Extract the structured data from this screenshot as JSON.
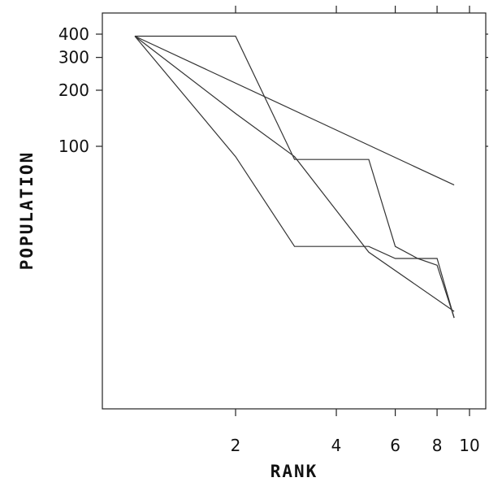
{
  "chart_data": {
    "type": "line",
    "title": "",
    "xlabel": "RANK",
    "ylabel": "POPULATION",
    "xscale": "log",
    "yscale": "log",
    "xlim": [
      1,
      10
    ],
    "ylim": [
      10,
      480
    ],
    "grid": false,
    "x_ticks": [
      {
        "value": 2,
        "label": "2"
      },
      {
        "value": 4,
        "label": "4"
      },
      {
        "value": 6,
        "label": "6"
      },
      {
        "value": 8,
        "label": "8"
      },
      {
        "value": 10,
        "label": "10"
      }
    ],
    "y_ticks": [
      {
        "value": 100,
        "label": "100"
      },
      {
        "value": 200,
        "label": "200"
      },
      {
        "value": 300,
        "label": "300"
      },
      {
        "value": 400,
        "label": "400"
      }
    ],
    "series": [
      {
        "x": [
          1,
          9
        ],
        "y": [
          390,
          62
        ]
      },
      {
        "x": [
          1,
          2,
          3,
          5,
          9
        ],
        "y": [
          390,
          150,
          88,
          27,
          13
        ]
      },
      {
        "x": [
          1,
          2,
          3,
          5,
          6,
          7,
          8,
          9
        ],
        "y": [
          390,
          88,
          29,
          29,
          25,
          25,
          23,
          12
        ]
      },
      {
        "x": [
          1,
          2,
          3,
          4,
          5,
          6,
          7,
          8,
          9
        ],
        "y": [
          390,
          390,
          85,
          85,
          85,
          29,
          25,
          25,
          12
        ]
      }
    ]
  }
}
